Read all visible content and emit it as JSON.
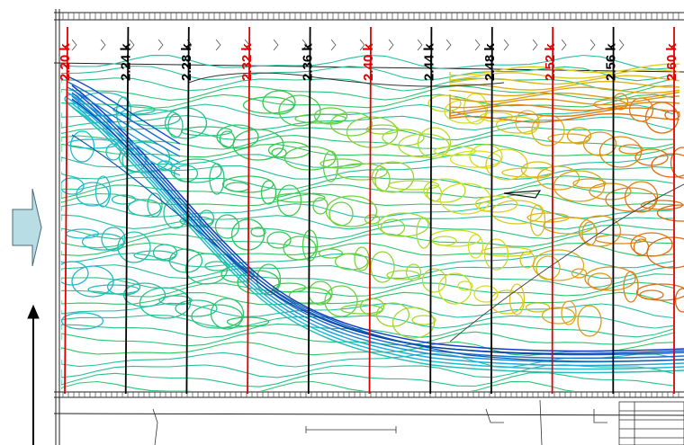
{
  "map": {
    "sections": [
      {
        "label": "2.20 k",
        "color": "#e00000"
      },
      {
        "label": "2.24 k",
        "color": "#000000"
      },
      {
        "label": "2.28 k",
        "color": "#000000"
      },
      {
        "label": "2.32 k",
        "color": "#e00000"
      },
      {
        "label": "2.36 k",
        "color": "#000000"
      },
      {
        "label": "2.40 k",
        "color": "#e00000"
      },
      {
        "label": "2.44 k",
        "color": "#000000"
      },
      {
        "label": "2.48 k",
        "color": "#000000"
      },
      {
        "label": "2.52 k",
        "color": "#e00000"
      },
      {
        "label": "2.56 k",
        "color": "#000000"
      },
      {
        "label": "2.60 k",
        "color": "#e00000"
      }
    ],
    "colors": {
      "low": "#1030c0",
      "mid_low": "#20b8e0",
      "mid": "#30c850",
      "mid_high": "#d8e020",
      "high": "#e06010",
      "flow_arrow_fill": "#b8dde4",
      "flow_arrow_stroke": "#4a6c78"
    },
    "icons": [
      "flow-direction-arrow",
      "north-arrow"
    ]
  }
}
